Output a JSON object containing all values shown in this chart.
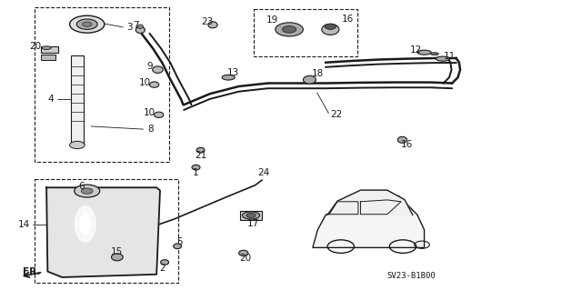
{
  "bg_color": "#ffffff",
  "line_color": "#1a1a1a",
  "diagram_code": "SV23-B1B00",
  "fr_label": "FR.",
  "font_size_label": 7.5,
  "font_size_code": 6.5
}
